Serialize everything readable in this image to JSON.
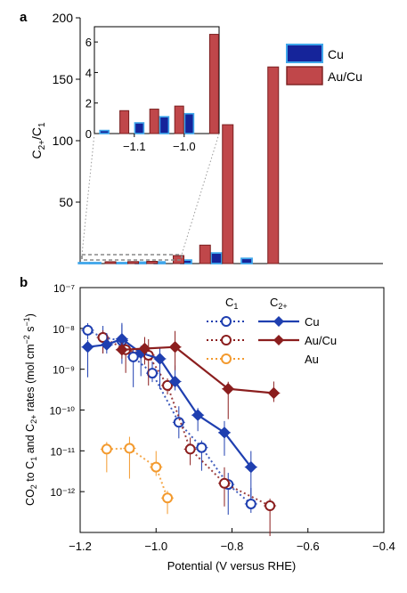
{
  "panel_a": {
    "label": "a",
    "ylabel_base": "C",
    "ylabel_sub1": "2+",
    "ylabel_mid": "/C",
    "ylabel_sub2": "1",
    "legend": [
      {
        "name": "Cu",
        "color": "#15249a",
        "edge": "#3fa6ea"
      },
      {
        "name": "Au/Cu",
        "color": "#c0474a",
        "edge": "#7a1f1f"
      }
    ]
  },
  "panel_b": {
    "label": "b",
    "xlabel": "Potential (V versus RHE)",
    "ylabel_parts": [
      "CO",
      "2",
      " to C",
      "1",
      " and C",
      "2+",
      " rates (mol cm",
      "−2",
      " s",
      "−1",
      ")"
    ],
    "legend_head_c1": "C",
    "legend_head_c1_sub": "1",
    "legend_head_c2": "C",
    "legend_head_c2_sub": "2+",
    "legend_labels": [
      "Cu",
      "Au/Cu",
      "Au"
    ]
  },
  "chart_data": [
    {
      "type": "bar",
      "panel": "a",
      "ylabel": "C2+/C1",
      "ylim": [
        0,
        200
      ],
      "yticks": [
        50,
        100,
        150,
        200
      ],
      "xlim": [
        -1.2,
        -0.4
      ],
      "series": [
        {
          "name": "Cu",
          "color": "#15249a",
          "points": [
            [
              -1.19,
              0.1
            ],
            [
              -1.16,
              0.2
            ],
            [
              -1.09,
              0.7
            ],
            [
              -1.04,
              1.1
            ],
            [
              -0.99,
              1.3
            ],
            [
              -0.92,
              2.8
            ],
            [
              -0.84,
              8.6
            ],
            [
              -0.76,
              4.2
            ]
          ]
        },
        {
          "name": "Au/Cu",
          "color": "#c0474a",
          "points": [
            [
              -1.12,
              1.5
            ],
            [
              -1.06,
              1.6
            ],
            [
              -1.01,
              1.8
            ],
            [
              -0.94,
              6.5
            ],
            [
              -0.87,
              15.0
            ],
            [
              -0.81,
              113.0
            ],
            [
              -0.69,
              160.0
            ]
          ]
        }
      ],
      "inset": {
        "xlim": [
          -1.18,
          -0.93
        ],
        "ylim": [
          0,
          7
        ],
        "xticks": [
          -1.1,
          -1.0
        ],
        "xtick_labels": [
          "−1.1",
          "−1.0"
        ],
        "yticks": [
          0,
          2,
          4,
          6
        ],
        "ytick_labels": [
          "0",
          "2",
          "4",
          "6"
        ]
      }
    },
    {
      "type": "scatter",
      "panel": "b",
      "xlabel": "Potential (V versus RHE)",
      "ylabel": "CO2 to C1 and C2+ rates (mol cm−2 s−1)",
      "xlim": [
        -1.2,
        -0.4
      ],
      "xticks": [
        -1.2,
        -1.0,
        -0.8,
        -0.6,
        -0.4
      ],
      "xtick_labels": [
        "−1.2",
        "−1.0",
        "−0.8",
        "−0.6",
        "−0.4"
      ],
      "ylim": [
        1e-13,
        1e-07
      ],
      "yscale": "log",
      "yticks": [
        1e-12,
        1e-11,
        1e-10,
        1e-09,
        1e-08,
        1e-07
      ],
      "ytick_labels": [
        "10⁻¹²",
        "10⁻¹¹",
        "10⁻¹⁰",
        "10⁻⁹",
        "10⁻⁸",
        "10⁻⁷"
      ],
      "series": [
        {
          "name": "Cu",
          "product": "C1",
          "style": "dotted-open-circle",
          "color": "#1f3fb0",
          "x": [
            -1.18,
            -1.14,
            -1.09,
            -1.06,
            -1.01,
            -0.94,
            -0.88,
            -0.81,
            -0.75
          ],
          "y": [
            9e-09,
            6e-09,
            5e-09,
            2e-09,
            8e-10,
            5e-11,
            1.2e-11,
            1.5e-12,
            5e-13
          ]
        },
        {
          "name": "Au/Cu",
          "product": "C1",
          "style": "dotted-open-circle",
          "color": "#8b1e1e",
          "x": [
            -1.14,
            -1.08,
            -1.02,
            -0.97,
            -0.91,
            -0.82,
            -0.7
          ],
          "y": [
            6e-09,
            3e-09,
            2.2e-09,
            4e-10,
            1.1e-11,
            1.6e-12,
            4.5e-13
          ]
        },
        {
          "name": "Au",
          "product": "C1",
          "style": "dotted-open-circle",
          "color": "#f39a2e",
          "x": [
            -1.13,
            -1.07,
            -1.0,
            -0.97
          ],
          "y": [
            1.1e-11,
            1.15e-11,
            4e-12,
            7e-13
          ]
        },
        {
          "name": "Cu",
          "product": "C2+",
          "style": "solid-diamond",
          "color": "#1f3fb0",
          "x": [
            -1.18,
            -1.13,
            -1.09,
            -1.04,
            -0.99,
            -0.95,
            -0.89,
            -0.82,
            -0.75
          ],
          "y": [
            3.5e-09,
            4e-09,
            5.5e-09,
            2.5e-09,
            1.8e-09,
            5e-10,
            7.5e-11,
            2.8e-11,
            4e-12
          ]
        },
        {
          "name": "Au/Cu",
          "product": "C2+",
          "style": "solid-diamond",
          "color": "#8b1e1e",
          "x": [
            -1.09,
            -1.03,
            -0.95,
            -0.81,
            -0.69
          ],
          "y": [
            3e-09,
            3.2e-09,
            3.5e-09,
            3.3e-10,
            2.6e-10
          ]
        }
      ]
    }
  ]
}
